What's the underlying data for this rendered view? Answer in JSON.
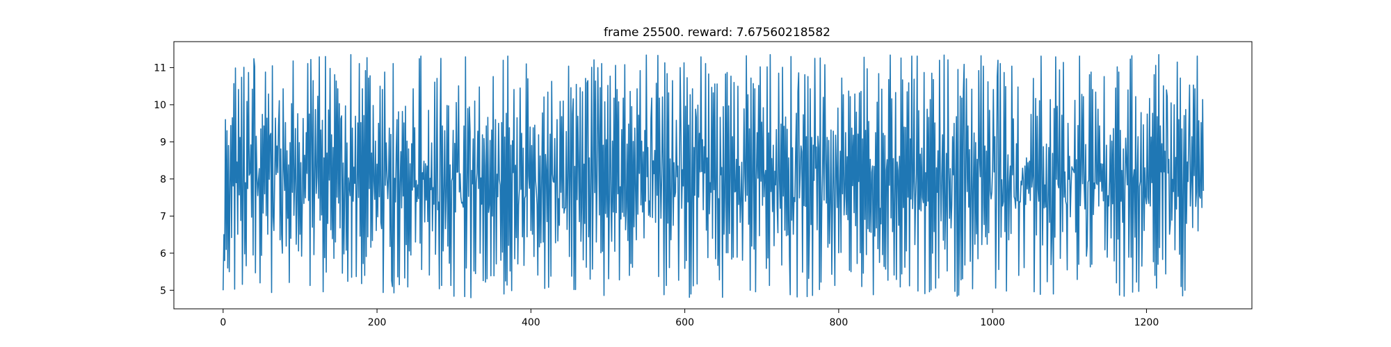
{
  "figure": {
    "background": "#ffffff"
  },
  "chart_data": {
    "type": "line",
    "title": "frame 25500. reward: 7.67560218582",
    "xlabel": "",
    "ylabel": "",
    "xlim": [
      -64,
      1337
    ],
    "ylim": [
      4.5,
      11.7
    ],
    "xticks": [
      0,
      200,
      400,
      600,
      800,
      1000,
      1200
    ],
    "yticks": [
      5,
      6,
      7,
      8,
      9,
      10,
      11
    ],
    "grid": false,
    "legend": "none",
    "line_color": "#1f77b4",
    "n_points": 1275,
    "series": [
      {
        "shape": "noisy oscillation between about 4.8 and 11.4 (estimated from image, not every point readable)",
        "start_values": [
          5.0,
          6.5,
          5.8,
          9.6,
          6.1,
          9.3,
          5.6,
          8.9,
          5.5,
          7.9
        ],
        "min": 4.8,
        "max": 11.35,
        "last_value": 7.68
      }
    ]
  }
}
